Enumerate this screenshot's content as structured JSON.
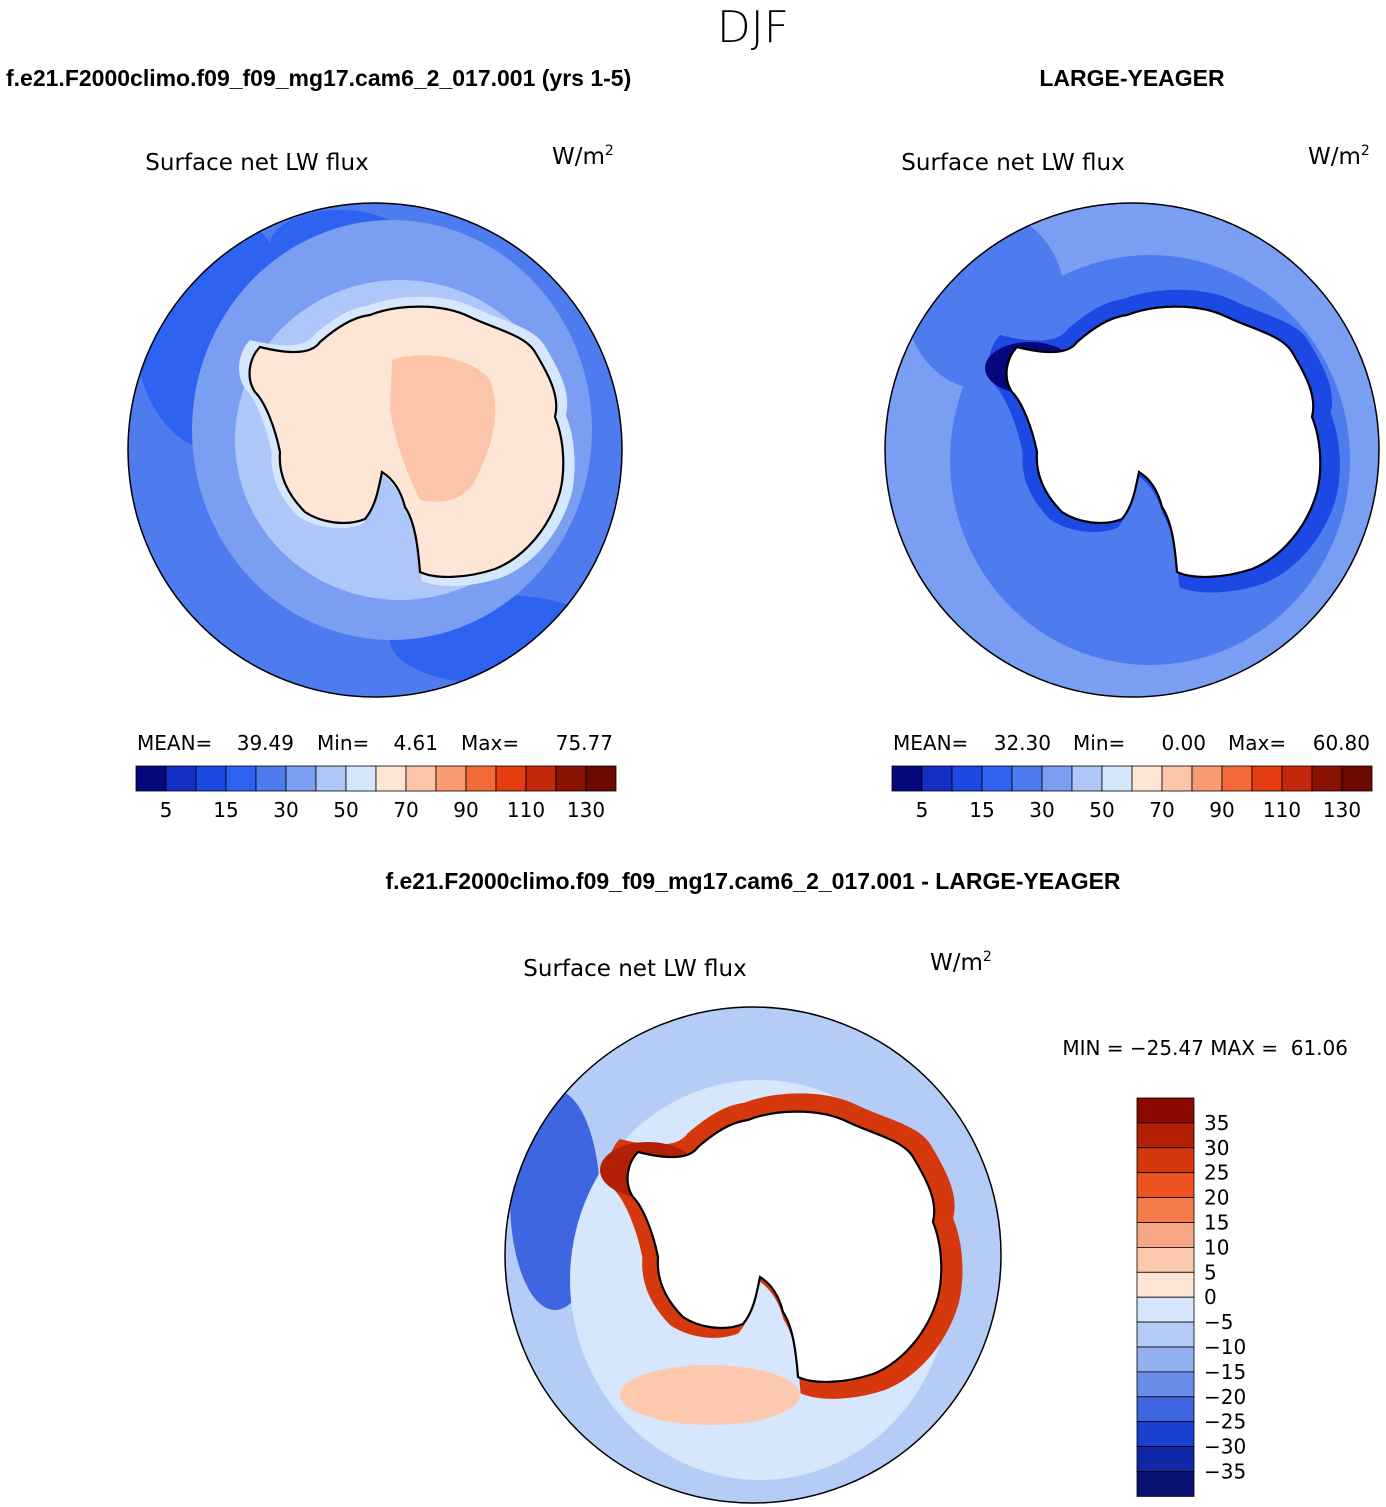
{
  "figure": {
    "season": "DJF",
    "left_case": "f.e21.F2000climo.f09_f09_mg17.cam6_2_017.001 (yrs 1-5)",
    "right_case": "LARGE-YEAGER",
    "diff_case": "f.e21.F2000climo.f09_f09_mg17.cam6_2_017.001 - LARGE-YEAGER"
  },
  "chart_data": [
    {
      "type": "heatmap",
      "projection": "south-polar-stereographic",
      "title": "Surface net LW flux",
      "units_base": "W/m",
      "units_exp": "2",
      "stats": {
        "mean_label": "MEAN=",
        "mean": "39.49",
        "min_label": "Min=",
        "min": "4.61",
        "max_label": "Max=",
        "max": "75.77"
      },
      "colorbar": {
        "orientation": "horizontal",
        "levels": [
          5,
          10,
          15,
          20,
          30,
          40,
          50,
          60,
          70,
          80,
          90,
          100,
          110,
          120,
          130
        ],
        "tick_labels": [
          "5",
          "15",
          "30",
          "50",
          "70",
          "90",
          "110",
          "130"
        ],
        "colors": [
          "#08087e",
          "#1430c4",
          "#1c48e4",
          "#2e62f0",
          "#4e7cee",
          "#7a9ef2",
          "#aec6f8",
          "#d6e6fc",
          "#fde6d6",
          "#fcc5a9",
          "#f89a72",
          "#f46a38",
          "#e63c12",
          "#c4280a",
          "#8a1200",
          "#6a0a00"
        ]
      },
      "regions": {
        "ocean_outer": "#4e7cee",
        "ocean_inner": "#7a9ef2",
        "coast_band": "#aec6f8",
        "ice_edge": "#d6e6fc",
        "continent": "#fde6d6",
        "plateau": "#fcc5a9"
      }
    },
    {
      "type": "heatmap",
      "projection": "south-polar-stereographic",
      "title": "Surface net LW flux",
      "units_base": "W/m",
      "units_exp": "2",
      "stats": {
        "mean_label": "MEAN=",
        "mean": "32.30",
        "min_label": "Min=",
        "min": "0.00",
        "max_label": "Max=",
        "max": "60.80"
      },
      "colorbar": {
        "orientation": "horizontal",
        "levels": [
          5,
          10,
          15,
          20,
          30,
          40,
          50,
          60,
          70,
          80,
          90,
          100,
          110,
          120,
          130
        ],
        "tick_labels": [
          "5",
          "15",
          "30",
          "50",
          "70",
          "90",
          "110",
          "130"
        ],
        "colors": [
          "#08087e",
          "#1430c4",
          "#1c48e4",
          "#2e62f0",
          "#4e7cee",
          "#7a9ef2",
          "#aec6f8",
          "#d6e6fc",
          "#fde6d6",
          "#fcc5a9",
          "#f89a72",
          "#f46a38",
          "#e63c12",
          "#c4280a",
          "#8a1200",
          "#6a0a00"
        ]
      },
      "regions": {
        "ocean_outer": "#7a9ef2",
        "ocean_inner": "#4e7cee",
        "coast_band": "#1c48e4",
        "continent": "#ffffff"
      }
    },
    {
      "type": "heatmap",
      "projection": "south-polar-stereographic",
      "title": "Surface net LW flux",
      "units_base": "W/m",
      "units_exp": "2",
      "stats": {
        "label": "MIN = −25.47 MAX =  61.06",
        "min": -25.47,
        "max": 61.06
      },
      "colorbar": {
        "orientation": "vertical",
        "levels": [
          -35,
          -30,
          -25,
          -20,
          -15,
          -10,
          -5,
          0,
          5,
          10,
          15,
          20,
          25,
          30,
          35
        ],
        "tick_labels": [
          "35",
          "30",
          "25",
          "20",
          "15",
          "10",
          "5",
          "0",
          "−5",
          "−10",
          "−15",
          "−20",
          "−25",
          "−30",
          "−35"
        ],
        "colors": [
          "#8a0a00",
          "#b42006",
          "#d6380e",
          "#ef5420",
          "#f47c4a",
          "#f8a686",
          "#fcc8ae",
          "#fde6d6",
          "#d6e6fc",
          "#b4ccf6",
          "#92b0f0",
          "#6a8ee8",
          "#3e66e0",
          "#1a40d0",
          "#1028a8",
          "#081070"
        ]
      },
      "regions": {
        "ocean_outer": "#b4ccf6",
        "ocean_inner": "#d6e6fc",
        "positive_ring": "#d6380e",
        "continent": "#ffffff"
      }
    }
  ]
}
